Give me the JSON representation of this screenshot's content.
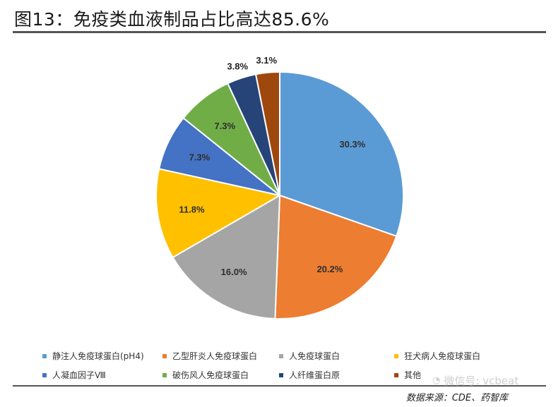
{
  "title": "图13：免疫类血液制品占比高达85.6%",
  "source": "数据来源：CDE、药智库",
  "watermark": {
    "icon": "wechat-icon",
    "text": "微信号: vcbeat"
  },
  "chart_data": {
    "type": "pie",
    "start_angle": "12-oclock",
    "direction": "clockwise",
    "legend_position": "bottom",
    "slices": [
      {
        "name": "静注人免疫球蛋白(pH4)",
        "value": 30.3,
        "label": "30.3%",
        "color": "#5b9bd5"
      },
      {
        "name": "乙型肝炎人免疫球蛋白",
        "value": 20.2,
        "label": "20.2%",
        "color": "#ed7d31"
      },
      {
        "name": "人免疫球蛋白",
        "value": 16.0,
        "label": "16.0%",
        "color": "#a5a5a5"
      },
      {
        "name": "狂犬病人免疫球蛋白",
        "value": 11.8,
        "label": "11.8%",
        "color": "#ffc000"
      },
      {
        "name": "人凝血因子Ⅷ",
        "value": 7.3,
        "label": "7.3%",
        "color": "#4472c4"
      },
      {
        "name": "破伤风人免疫球蛋白",
        "value": 7.3,
        "label": "7.3%",
        "color": "#70ad47"
      },
      {
        "name": "人纤维蛋白原",
        "value": 3.8,
        "label": "3.8%",
        "color": "#264478"
      },
      {
        "name": "其他",
        "value": 3.1,
        "label": "3.1%",
        "color": "#9e480e"
      }
    ]
  }
}
